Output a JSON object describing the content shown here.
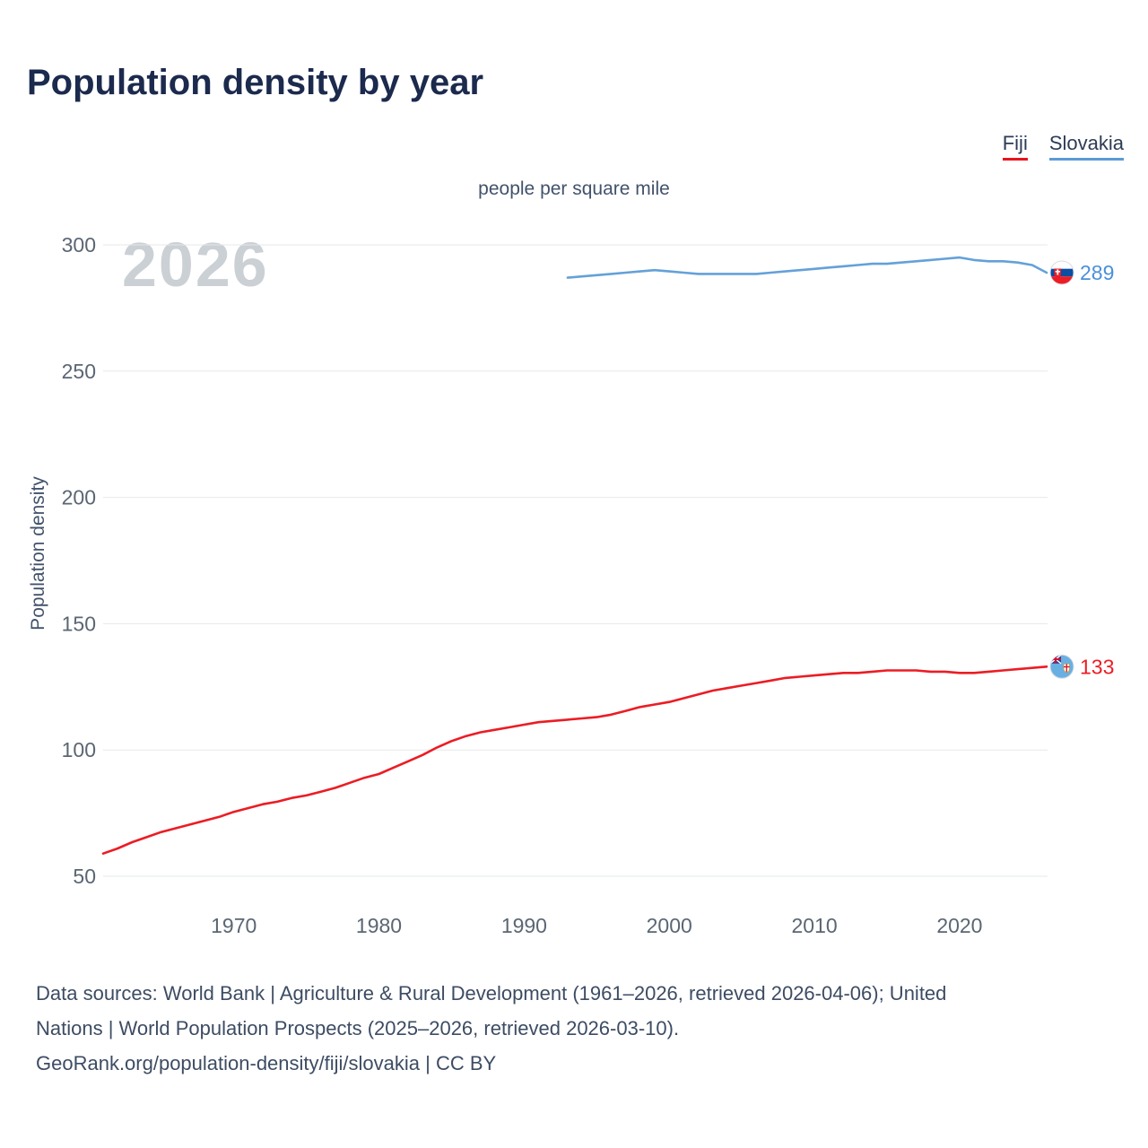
{
  "title": "Population density by year",
  "subtitle": "people per square mile",
  "watermark": "2026",
  "legend": {
    "fiji": {
      "label": "Fiji",
      "color": "#e8131d"
    },
    "slovakia": {
      "label": "Slovakia",
      "color": "#5b9bd5"
    }
  },
  "footer": {
    "lines": [
      "Data sources: World Bank | Agriculture & Rural Development (1961–2026, retrieved 2026-04-06); United",
      "Nations | World Population Prospects (2025–2026, retrieved 2026-03-10).",
      "GeoRank.org/population-density/fiji/slovakia | CC BY"
    ]
  },
  "chart_data": {
    "type": "line",
    "title": "Population density by year",
    "unit_label": "people per square mile",
    "xlabel": "",
    "ylabel": "Population density",
    "xlim": [
      1961,
      2026
    ],
    "ylim": [
      40,
      310
    ],
    "x_ticks": [
      1970,
      1980,
      1990,
      2000,
      2010,
      2020
    ],
    "y_ticks": [
      300,
      250,
      200,
      150,
      100,
      50
    ],
    "grid": "horizontal",
    "legend_position": "top-right",
    "series": [
      {
        "id": "fiji",
        "name": "Fiji",
        "color": "#ec1c24",
        "label_color": "#ec1c24",
        "end_label": "133",
        "points": [
          [
            1961,
            59
          ],
          [
            1962,
            61
          ],
          [
            1963,
            63.5
          ],
          [
            1964,
            65.5
          ],
          [
            1965,
            67.5
          ],
          [
            1966,
            69
          ],
          [
            1967,
            70.5
          ],
          [
            1968,
            72
          ],
          [
            1969,
            73.5
          ],
          [
            1970,
            75.5
          ],
          [
            1971,
            77
          ],
          [
            1972,
            78.5
          ],
          [
            1973,
            79.5
          ],
          [
            1974,
            81
          ],
          [
            1975,
            82
          ],
          [
            1976,
            83.5
          ],
          [
            1977,
            85
          ],
          [
            1978,
            87
          ],
          [
            1979,
            89
          ],
          [
            1980,
            90.5
          ],
          [
            1981,
            93
          ],
          [
            1982,
            95.5
          ],
          [
            1983,
            98
          ],
          [
            1984,
            101
          ],
          [
            1985,
            103.5
          ],
          [
            1986,
            105.5
          ],
          [
            1987,
            107
          ],
          [
            1988,
            108
          ],
          [
            1989,
            109
          ],
          [
            1990,
            110
          ],
          [
            1991,
            111
          ],
          [
            1992,
            111.5
          ],
          [
            1993,
            112
          ],
          [
            1994,
            112.5
          ],
          [
            1995,
            113
          ],
          [
            1996,
            114
          ],
          [
            1997,
            115.5
          ],
          [
            1998,
            117
          ],
          [
            1999,
            118
          ],
          [
            2000,
            119
          ],
          [
            2001,
            120.5
          ],
          [
            2002,
            122
          ],
          [
            2003,
            123.5
          ],
          [
            2004,
            124.5
          ],
          [
            2005,
            125.5
          ],
          [
            2006,
            126.5
          ],
          [
            2007,
            127.5
          ],
          [
            2008,
            128.5
          ],
          [
            2009,
            129
          ],
          [
            2010,
            129.5
          ],
          [
            2011,
            130
          ],
          [
            2012,
            130.5
          ],
          [
            2013,
            130.5
          ],
          [
            2014,
            131
          ],
          [
            2015,
            131.5
          ],
          [
            2016,
            131.5
          ],
          [
            2017,
            131.5
          ],
          [
            2018,
            131
          ],
          [
            2019,
            131
          ],
          [
            2020,
            130.5
          ],
          [
            2021,
            130.5
          ],
          [
            2022,
            131
          ],
          [
            2023,
            131.5
          ],
          [
            2024,
            132
          ],
          [
            2025,
            132.5
          ],
          [
            2026,
            133
          ]
        ]
      },
      {
        "id": "slovakia",
        "name": "Slovakia",
        "color": "#64a1d8",
        "label_color": "#4a90d9",
        "end_label": "289",
        "points": [
          [
            1993,
            287
          ],
          [
            1994,
            287.5
          ],
          [
            1995,
            288
          ],
          [
            1996,
            288.5
          ],
          [
            1997,
            289
          ],
          [
            1998,
            289.5
          ],
          [
            1999,
            290
          ],
          [
            2000,
            289.5
          ],
          [
            2001,
            289
          ],
          [
            2002,
            288.5
          ],
          [
            2003,
            288.5
          ],
          [
            2004,
            288.5
          ],
          [
            2005,
            288.5
          ],
          [
            2006,
            288.5
          ],
          [
            2007,
            289
          ],
          [
            2008,
            289.5
          ],
          [
            2009,
            290
          ],
          [
            2010,
            290.5
          ],
          [
            2011,
            291
          ],
          [
            2012,
            291.5
          ],
          [
            2013,
            292
          ],
          [
            2014,
            292.5
          ],
          [
            2015,
            292.5
          ],
          [
            2016,
            293
          ],
          [
            2017,
            293.5
          ],
          [
            2018,
            294
          ],
          [
            2019,
            294.5
          ],
          [
            2020,
            295
          ],
          [
            2021,
            294
          ],
          [
            2022,
            293.5
          ],
          [
            2023,
            293.5
          ],
          [
            2024,
            293
          ],
          [
            2025,
            292
          ],
          [
            2026,
            289
          ]
        ]
      }
    ]
  }
}
